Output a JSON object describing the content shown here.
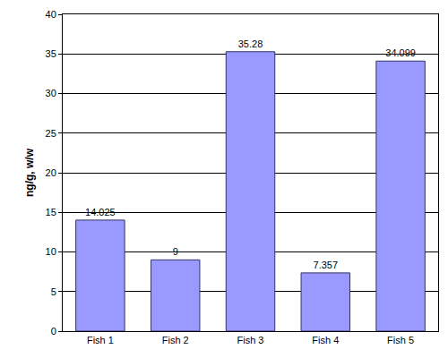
{
  "chart_data": {
    "type": "bar",
    "y_label": "ng/g, w/w",
    "categories": [
      "Fish 1",
      "Fish 2",
      "Fish 3",
      "Fish 4",
      "Fish 5"
    ],
    "values": [
      14.025,
      9,
      35.28,
      7.357,
      34.099
    ],
    "color": "#9999ff",
    "ylim": [
      0,
      40
    ],
    "yticks": [
      0,
      5,
      10,
      15,
      20,
      25,
      30,
      35,
      40
    ],
    "grid": true,
    "data_labels": true
  }
}
